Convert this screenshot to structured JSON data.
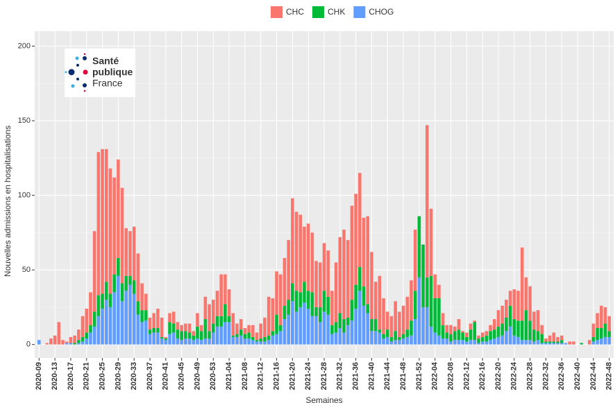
{
  "chart_data": {
    "type": "stacked-bar",
    "x_label": "Semaines",
    "y_label": "Nouvelles admissions en hospitalisations",
    "annotations": [
      "Santé",
      "publique",
      "France"
    ],
    "categories": [
      "2020-09",
      null,
      null,
      null,
      "2020-13",
      null,
      null,
      null,
      "2020-17",
      null,
      null,
      null,
      "2020-21",
      null,
      null,
      null,
      "2020-25",
      null,
      null,
      null,
      "2020-29",
      null,
      null,
      null,
      "2020-33",
      null,
      null,
      null,
      "2020-37",
      null,
      null,
      null,
      "2020-41",
      null,
      null,
      null,
      "2020-45",
      null,
      null,
      null,
      "2020-49",
      null,
      null,
      null,
      "2020-53",
      null,
      null,
      null,
      "2021-04",
      null,
      null,
      null,
      "2021-08",
      null,
      null,
      null,
      "2021-12",
      null,
      null,
      null,
      "2021-16",
      null,
      null,
      null,
      "2021-20",
      null,
      null,
      null,
      "2021-24",
      null,
      null,
      null,
      "2021-28",
      null,
      null,
      null,
      "2021-32",
      null,
      null,
      null,
      "2021-36",
      null,
      null,
      null,
      "2021-40",
      null,
      null,
      null,
      "2021-44",
      null,
      null,
      null,
      "2021-48",
      null,
      null,
      null,
      "2021-52",
      null,
      null,
      null,
      "2022-04",
      null,
      null,
      null,
      "2022-08",
      null,
      null,
      null,
      "2022-12",
      null,
      null,
      null,
      "2022-16",
      null,
      null,
      null,
      "2022-20",
      null,
      null,
      null,
      "2022-24",
      null,
      null,
      null,
      "2022-28",
      null,
      null,
      null,
      "2022-32",
      null,
      null,
      null,
      "2022-36",
      null,
      null,
      null,
      "2022-40",
      null,
      null,
      null,
      "2022-44",
      null,
      null,
      null,
      "2022-48"
    ],
    "series": [
      {
        "name": "CHC",
        "color": "#f8766d",
        "values": [
          0,
          0,
          1,
          4,
          6,
          15,
          3,
          1,
          4,
          5,
          7,
          14,
          16,
          22,
          54,
          96,
          97,
          89,
          84,
          65,
          66,
          64,
          32,
          30,
          36,
          32,
          18,
          11,
          8,
          10,
          13,
          13,
          1,
          6,
          8,
          5,
          4,
          5,
          6,
          3,
          9,
          4,
          15,
          18,
          16,
          17,
          28,
          20,
          18,
          15,
          7,
          7,
          4,
          5,
          8,
          5,
          10,
          13,
          26,
          22,
          29,
          34,
          32,
          40,
          57,
          53,
          52,
          37,
          45,
          40,
          31,
          30,
          32,
          31,
          23,
          40,
          51,
          60,
          52,
          63,
          61,
          63,
          46,
          59,
          45,
          25,
          36,
          24,
          12,
          14,
          20,
          17,
          19,
          22,
          27,
          41,
          0,
          0,
          102,
          45,
          16,
          9,
          8,
          5,
          6,
          3,
          7,
          1,
          3,
          4,
          1,
          2,
          3,
          3,
          4,
          7,
          11,
          12,
          12,
          10,
          20,
          20,
          49,
          22,
          23,
          12,
          14,
          6,
          2,
          4,
          6,
          3,
          3,
          0,
          2,
          2,
          0,
          0,
          0,
          3,
          9,
          10,
          15,
          11,
          10
        ]
      },
      {
        "name": "CHK",
        "color": "#00ba38",
        "values": [
          0,
          0,
          0,
          0,
          0,
          0,
          0,
          0,
          0,
          1,
          2,
          3,
          4,
          5,
          10,
          14,
          10,
          12,
          9,
          12,
          12,
          12,
          10,
          6,
          9,
          9,
          8,
          7,
          3,
          3,
          3,
          1,
          1,
          8,
          6,
          6,
          6,
          5,
          4,
          3,
          8,
          6,
          13,
          5,
          6,
          7,
          7,
          12,
          4,
          1,
          2,
          4,
          3,
          4,
          2,
          1,
          2,
          3,
          3,
          3,
          13,
          4,
          9,
          10,
          12,
          14,
          10,
          14,
          12,
          16,
          6,
          10,
          14,
          12,
          6,
          7,
          10,
          9,
          5,
          14,
          16,
          16,
          13,
          6,
          8,
          8,
          2,
          3,
          5,
          3,
          6,
          2,
          3,
          5,
          10,
          19,
          41,
          42,
          20,
          34,
          23,
          25,
          9,
          4,
          5,
          6,
          7,
          5,
          3,
          7,
          12,
          3,
          3,
          4,
          6,
          6,
          7,
          8,
          9,
          14,
          11,
          11,
          13,
          20,
          13,
          8,
          6,
          6,
          1,
          1,
          1,
          1,
          2,
          0,
          0,
          0,
          0,
          1,
          0,
          0,
          3,
          8,
          7,
          9,
          4
        ]
      },
      {
        "name": "CHOG",
        "color": "#619cff",
        "values": [
          3,
          0,
          0,
          0,
          0,
          0,
          0,
          1,
          1,
          0,
          1,
          2,
          4,
          8,
          12,
          19,
          24,
          30,
          25,
          35,
          46,
          29,
          36,
          40,
          34,
          20,
          15,
          16,
          7,
          8,
          8,
          4,
          3,
          7,
          8,
          4,
          3,
          4,
          4,
          3,
          4,
          3,
          4,
          4,
          8,
          12,
          12,
          15,
          15,
          5,
          5,
          6,
          4,
          4,
          3,
          2,
          2,
          2,
          3,
          6,
          7,
          9,
          17,
          20,
          29,
          22,
          25,
          28,
          24,
          19,
          19,
          15,
          22,
          20,
          7,
          8,
          11,
          8,
          13,
          16,
          24,
          36,
          26,
          21,
          9,
          9,
          8,
          4,
          5,
          2,
          3,
          3,
          4,
          5,
          6,
          17,
          45,
          25,
          25,
          12,
          8,
          6,
          4,
          4,
          2,
          3,
          3,
          3,
          2,
          3,
          3,
          1,
          2,
          2,
          3,
          4,
          5,
          6,
          9,
          12,
          6,
          5,
          3,
          3,
          3,
          2,
          3,
          1,
          1,
          1,
          1,
          1,
          1,
          1,
          0,
          0,
          0,
          0,
          0,
          0,
          2,
          3,
          4,
          5,
          5
        ]
      }
    ],
    "ylim": [
      -9,
      210
    ],
    "yticks": [
      0,
      50,
      100,
      150,
      200
    ],
    "grid": true,
    "legend": "top"
  }
}
